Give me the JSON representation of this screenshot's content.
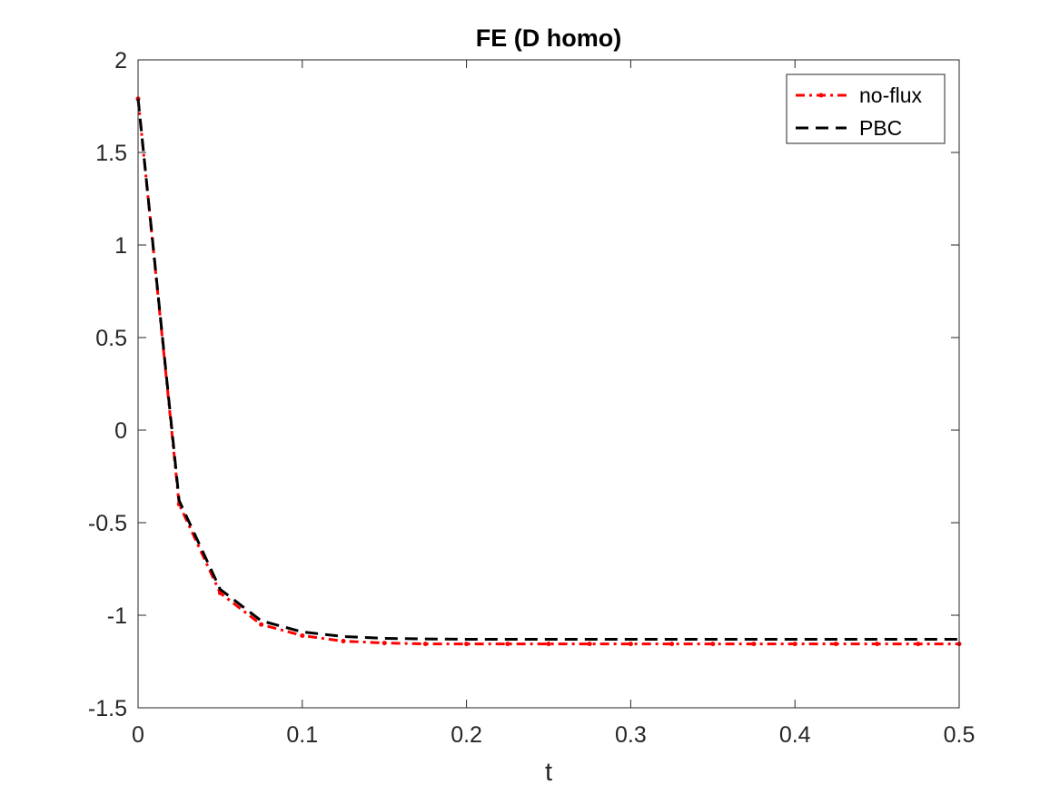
{
  "chart_data": {
    "type": "line",
    "title": "FE (D homo)",
    "xlabel": "t",
    "ylabel": "",
    "xlim": [
      0,
      0.5
    ],
    "ylim": [
      -1.5,
      2
    ],
    "xticks": [
      0,
      0.1,
      0.2,
      0.3,
      0.4,
      0.5
    ],
    "xtick_labels": [
      "0",
      "0.1",
      "0.2",
      "0.3",
      "0.4",
      "0.5"
    ],
    "yticks": [
      2,
      1.5,
      1,
      0.5,
      0,
      -0.5,
      -1,
      -1.5
    ],
    "ytick_labels": [
      "2",
      "1.5",
      "1",
      "0.5",
      "0",
      "-0.5",
      "-1",
      "-1.5"
    ],
    "grid": false,
    "legend_position": "top-right",
    "x": [
      0,
      0.025,
      0.05,
      0.075,
      0.1,
      0.125,
      0.15,
      0.175,
      0.2,
      0.225,
      0.25,
      0.275,
      0.3,
      0.325,
      0.35,
      0.375,
      0.4,
      0.425,
      0.45,
      0.475,
      0.5
    ],
    "series": [
      {
        "name": "no-flux",
        "color": "#ff0000",
        "line_style": "dash-dot",
        "marker": "dot",
        "values": [
          1.79,
          -0.4,
          -0.88,
          -1.05,
          -1.11,
          -1.14,
          -1.15,
          -1.155,
          -1.155,
          -1.155,
          -1.155,
          -1.155,
          -1.155,
          -1.155,
          -1.155,
          -1.155,
          -1.155,
          -1.155,
          -1.155,
          -1.155,
          -1.155
        ]
      },
      {
        "name": "PBC",
        "color": "#000000",
        "line_style": "dashed",
        "marker": "none",
        "values": [
          1.79,
          -0.38,
          -0.86,
          -1.03,
          -1.09,
          -1.115,
          -1.125,
          -1.128,
          -1.13,
          -1.13,
          -1.13,
          -1.13,
          -1.13,
          -1.13,
          -1.13,
          -1.13,
          -1.13,
          -1.13,
          -1.13,
          -1.13,
          -1.13
        ]
      }
    ]
  }
}
